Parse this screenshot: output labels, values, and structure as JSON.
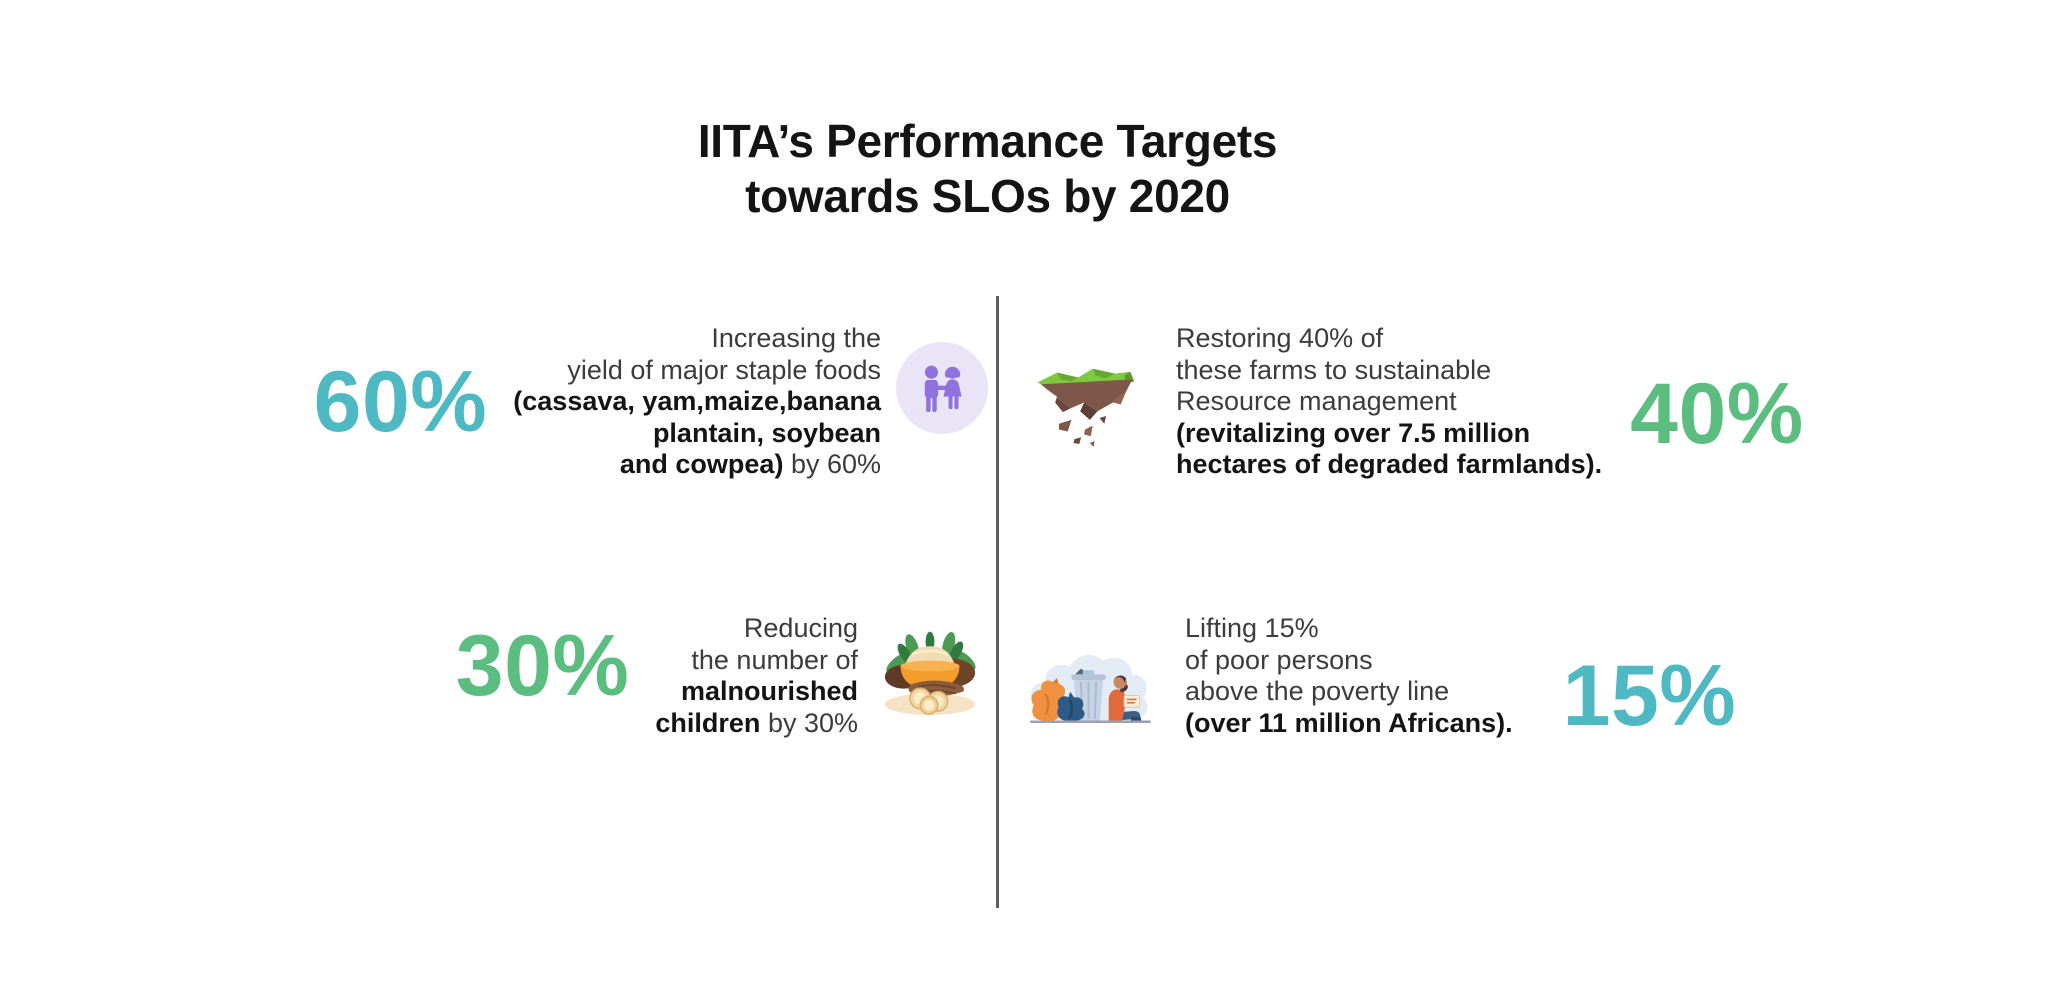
{
  "title": {
    "line1": "IITA’s Performance Targets",
    "line2": "towards SLOs by 2020"
  },
  "colors": {
    "teal_accent": "#4FB9C3",
    "green_accent": "#5BBE80",
    "title_text": "#141414",
    "body_text": "#3c3c3c",
    "divider": "#5f5f5f",
    "couple_purple": "#8F72DC",
    "couple_circle_bg": "#E9E5F6"
  },
  "quadrants": {
    "yield": {
      "percent": "60%",
      "percent_color": "#4FB9C3",
      "icon": "couple-icon",
      "lines": [
        [
          {
            "text": "Increasing the"
          }
        ],
        [
          {
            "text": "yield of major staple foods"
          }
        ],
        [
          {
            "text": "(cassava, yam,maize,banana",
            "bold": true
          }
        ],
        [
          {
            "text": "plantain, soybean",
            "bold": true
          }
        ],
        [
          {
            "text": "and cowpea)",
            "bold": true
          },
          {
            "text": " by 60%"
          }
        ]
      ]
    },
    "restore": {
      "percent": "40%",
      "percent_color": "#5BBE80",
      "icon": "floating-island-icon",
      "lines": [
        [
          {
            "text": "Restoring 40% of"
          }
        ],
        [
          {
            "text": "these farms to sustainable"
          }
        ],
        [
          {
            "text": "Resource management"
          }
        ],
        [
          {
            "text": "(revitalizing over 7.5 million",
            "bold": true
          }
        ],
        [
          {
            "text": "hectares of degraded farmlands).",
            "bold": true
          }
        ]
      ]
    },
    "malnutrition": {
      "percent": "30%",
      "percent_color": "#5BBE80",
      "icon": "food-bowl-icon",
      "lines": [
        [
          {
            "text": "Reducing"
          }
        ],
        [
          {
            "text": "the number of"
          }
        ],
        [
          {
            "text": "malnourished",
            "bold": true
          }
        ],
        [
          {
            "text": "children",
            "bold": true
          },
          {
            "text": " by 30%"
          }
        ]
      ]
    },
    "poverty": {
      "percent": "15%",
      "percent_color": "#4FB9C3",
      "icon": "poverty-icon",
      "lines": [
        [
          {
            "text": "Lifting 15%"
          }
        ],
        [
          {
            "text": "of poor persons"
          }
        ],
        [
          {
            "text": "above the poverty line"
          }
        ],
        [
          {
            "text": "(over 11 million Africans).",
            "bold": true
          }
        ]
      ]
    }
  }
}
